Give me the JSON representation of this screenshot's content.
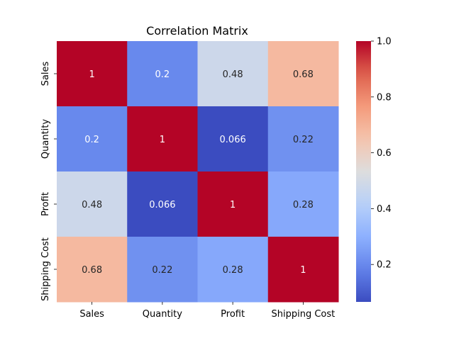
{
  "chart_data": {
    "type": "heatmap",
    "title": "Correlation Matrix",
    "xlabel": "",
    "ylabel": "",
    "x_categories": [
      "Sales",
      "Quantity",
      "Profit",
      "Shipping Cost"
    ],
    "y_categories": [
      "Sales",
      "Quantity",
      "Profit",
      "Shipping Cost"
    ],
    "values": [
      [
        1,
        0.2,
        0.48,
        0.68
      ],
      [
        0.2,
        1,
        0.066,
        0.22
      ],
      [
        0.48,
        0.066,
        1,
        0.28
      ],
      [
        0.68,
        0.22,
        0.28,
        1
      ]
    ],
    "labels": [
      [
        "1",
        "0.2",
        "0.48",
        "0.68"
      ],
      [
        "0.2",
        "1",
        "0.066",
        "0.22"
      ],
      [
        "0.48",
        "0.066",
        "1",
        "0.28"
      ],
      [
        "0.68",
        "0.22",
        "0.28",
        "1"
      ]
    ],
    "colormap": "coolwarm",
    "color_range": [
      0.066,
      1.0
    ],
    "colorbar_ticks": [
      0.2,
      0.4,
      0.6,
      0.8,
      1.0
    ],
    "colorbar_tick_labels": [
      "0.2",
      "0.4",
      "0.6",
      "0.8",
      "1.0"
    ]
  }
}
